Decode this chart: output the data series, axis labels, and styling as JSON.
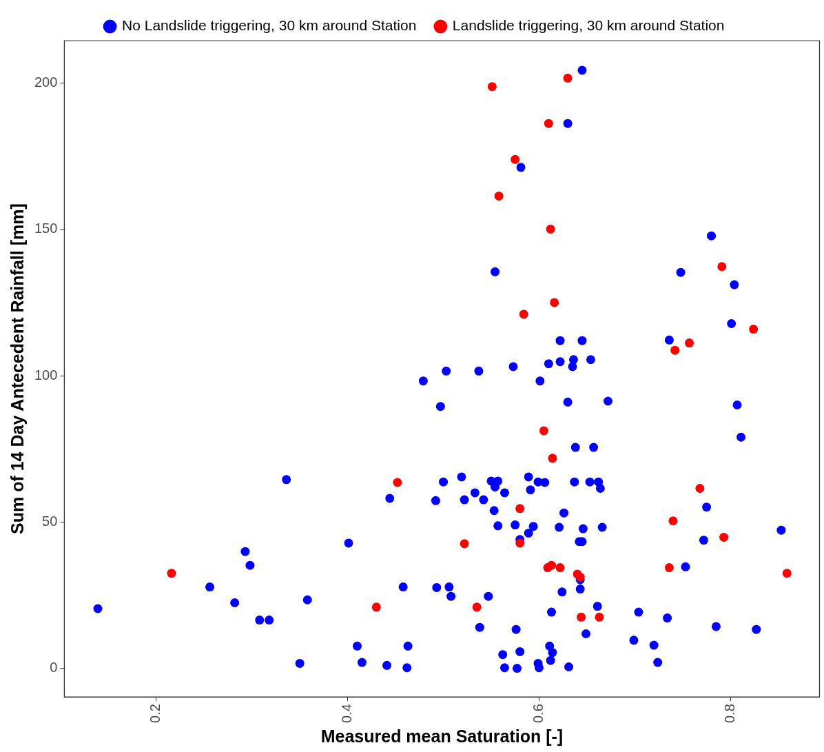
{
  "chart_data": {
    "type": "scatter",
    "xlabel": "Measured mean Saturation [-]",
    "ylabel": "Sum of 14 Day Antecedent Rainfall [mm]",
    "xlim": [
      0.104,
      0.893
    ],
    "ylim": [
      -9.8,
      214.5
    ],
    "xticks": [
      0.2,
      0.4,
      0.6,
      0.8
    ],
    "yticks": [
      0,
      50,
      100,
      150,
      200
    ],
    "grid": false,
    "legend": "top",
    "marker": "circle",
    "series": [
      {
        "name": "No Landslide triggering, 30 km around Station",
        "color": "#0000ff",
        "x": [
          0.139,
          0.256,
          0.282,
          0.293,
          0.298,
          0.308,
          0.318,
          0.358,
          0.336,
          0.35,
          0.401,
          0.41,
          0.415,
          0.441,
          0.444,
          0.458,
          0.463,
          0.462,
          0.479,
          0.493,
          0.492,
          0.497,
          0.5,
          0.503,
          0.506,
          0.508,
          0.519,
          0.522,
          0.533,
          0.537,
          0.538,
          0.542,
          0.547,
          0.55,
          0.554,
          0.557,
          0.553,
          0.554,
          0.557,
          0.564,
          0.562,
          0.564,
          0.573,
          0.575,
          0.576,
          0.577,
          0.58,
          0.58,
          0.581,
          0.589,
          0.589,
          0.591,
          0.594,
          0.599,
          0.601,
          0.599,
          0.6,
          0.606,
          0.61,
          0.611,
          0.612,
          0.613,
          0.614,
          0.621,
          0.622,
          0.622,
          0.624,
          0.626,
          0.63,
          0.63,
          0.631,
          0.635,
          0.636,
          0.637,
          0.638,
          0.642,
          0.643,
          0.643,
          0.645,
          0.645,
          0.645,
          0.646,
          0.649,
          0.653,
          0.654,
          0.657,
          0.661,
          0.662,
          0.664,
          0.666,
          0.672,
          0.699,
          0.704,
          0.72,
          0.724,
          0.734,
          0.736,
          0.748,
          0.753,
          0.772,
          0.775,
          0.78,
          0.785,
          0.801,
          0.804,
          0.807,
          0.811,
          0.827,
          0.853
        ],
        "values": [
          20.4,
          27.8,
          22.4,
          39.9,
          35.2,
          16.5,
          16.5,
          23.4,
          64.5,
          1.7,
          42.8,
          7.6,
          2.0,
          1.0,
          58.1,
          27.8,
          7.6,
          0.2,
          98.2,
          27.6,
          57.3,
          89.5,
          63.7,
          101.6,
          27.8,
          24.6,
          65.4,
          57.6,
          60.0,
          101.6,
          14.0,
          57.6,
          24.6,
          64.0,
          62.0,
          64.0,
          53.9,
          135.5,
          48.7,
          60.0,
          4.7,
          0.2,
          103.1,
          49.0,
          13.3,
          0,
          5.7,
          44.0,
          171.2,
          65.4,
          46.2,
          61.0,
          48.5,
          63.7,
          98.2,
          1.7,
          0.2,
          63.5,
          104.1,
          7.6,
          2.7,
          19.2,
          5.4,
          48.2,
          112.0,
          104.8,
          26.1,
          53.1,
          186.2,
          91.0,
          0.5,
          103.1,
          105.5,
          63.7,
          75.5,
          43.3,
          27.1,
          30.3,
          204.4,
          112.0,
          43.3,
          47.7,
          11.8,
          63.7,
          105.5,
          75.5,
          21.2,
          63.7,
          61.5,
          48.2,
          91.3,
          9.6,
          19.2,
          7.9,
          2.0,
          17.2,
          112.2,
          135.3,
          34.7,
          43.8,
          55.1,
          147.8,
          14.3,
          117.8,
          131.1,
          90.0,
          79.0,
          13.3,
          47.2
        ]
      },
      {
        "name": "Landslide triggering, 30 km around Station",
        "color": "#ff0000",
        "x": [
          0.216,
          0.43,
          0.452,
          0.522,
          0.535,
          0.551,
          0.558,
          0.575,
          0.58,
          0.58,
          0.584,
          0.605,
          0.609,
          0.61,
          0.612,
          0.613,
          0.614,
          0.616,
          0.622,
          0.63,
          0.64,
          0.643,
          0.644,
          0.663,
          0.736,
          0.74,
          0.742,
          0.757,
          0.768,
          0.791,
          0.793,
          0.824,
          0.859
        ],
        "values": [
          32.5,
          20.9,
          63.5,
          42.6,
          20.9,
          198.8,
          161.4,
          173.9,
          54.6,
          42.8,
          121.0,
          81.2,
          34.4,
          186.2,
          150.1,
          35.2,
          71.8,
          125.0,
          34.4,
          201.7,
          32.2,
          31.2,
          17.5,
          17.5,
          34.4,
          50.4,
          108.7,
          111.2,
          61.5,
          137.3,
          44.8,
          115.9,
          32.5
        ]
      }
    ]
  }
}
